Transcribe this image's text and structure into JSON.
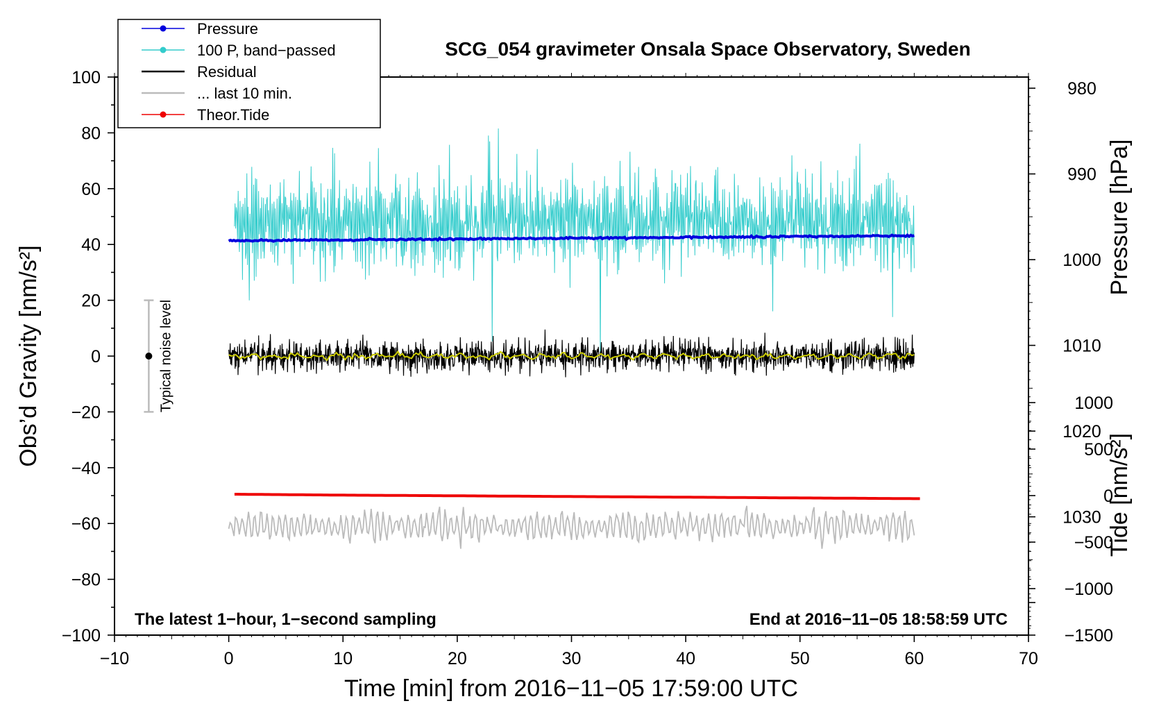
{
  "chart_data": {
    "type": "line",
    "title": "SCG_054 gravimeter Onsala Space Observatory, Sweden",
    "xlabel": "Time [min] from 2016−11−05 17:59:00 UTC",
    "ylabel_left": "Obs’d Gravity [nm/s²]",
    "ylabel_right_top": "Pressure [hPa]",
    "ylabel_right_bottom": "Tide [nm/s²]",
    "xlim": [
      -10,
      70
    ],
    "ylim": [
      -100,
      100
    ],
    "pressure_lim": [
      1043.8,
      978.7
    ],
    "tide_lim": [
      -1500,
      4500
    ],
    "x_ticks": [
      -10,
      0,
      10,
      20,
      30,
      40,
      50,
      60,
      70
    ],
    "x_tick_labels": [
      "−10",
      "0",
      "10",
      "20",
      "30",
      "40",
      "50",
      "60",
      "70"
    ],
    "y_ticks": [
      100,
      80,
      60,
      40,
      20,
      0,
      -20,
      -40,
      -60,
      -80,
      -100
    ],
    "y_tick_labels": [
      "100",
      "80",
      "60",
      "40",
      "20",
      "0",
      "−20",
      "−40",
      "−60",
      "−80",
      "−100"
    ],
    "pressure_ticks": [
      1030,
      1020,
      1010,
      1000,
      990,
      980
    ],
    "pressure_tick_labels": [
      "1030",
      "1020",
      "1010",
      "1000",
      "990",
      "980"
    ],
    "tide_ticks": [
      1000,
      500,
      0,
      -500,
      -1000,
      -1500
    ],
    "tide_tick_labels": [
      "1000",
      "500",
      "0",
      "−500",
      "−1000",
      "−1500"
    ],
    "legend_position": "top-left",
    "legend": [
      {
        "label": "Pressure",
        "color": "#0000dd",
        "marker": true
      },
      {
        "label": "100 P, band−passed",
        "color": "#33cccc",
        "marker": true
      },
      {
        "label": "Residual",
        "color": "#000000",
        "marker": false
      },
      {
        "label": "... last 10 min.",
        "color": "#bbbbbb",
        "marker": false
      },
      {
        "label": "Theor.Tide",
        "color": "#ee0000",
        "marker": true
      }
    ],
    "annotations": {
      "bottom_left": "The latest 1−hour, 1−second sampling",
      "bottom_right": "End at 2016−11−05 18:58:59 UTC",
      "noise_label": "Typical noise level"
    },
    "noise_bar": {
      "x": -7,
      "center": 0,
      "low": -20,
      "high": 20
    },
    "grid": false,
    "series": [
      {
        "name": "Pressure",
        "unit": "hPa",
        "color": "#0000dd",
        "x": [
          0,
          10,
          20,
          30,
          40,
          50,
          60
        ],
        "values": [
          997.8,
          997.7,
          997.6,
          997.5,
          997.4,
          997.3,
          997.2
        ]
      },
      {
        "name": "100 P, band−passed",
        "unit": "nm/s²",
        "color": "#33cccc",
        "center": 48,
        "amplitude": 12,
        "x_range": [
          0.5,
          60
        ]
      },
      {
        "name": "Residual",
        "unit": "nm/s²",
        "color": "#000000",
        "center": 0,
        "amplitude": 4,
        "x_range": [
          0,
          60
        ]
      },
      {
        "name": "Residual smoothed",
        "unit": "nm/s²",
        "color": "#cccc00",
        "center": 0,
        "amplitude": 1,
        "x_range": [
          0,
          60
        ]
      },
      {
        "name": "... last 10 min.",
        "unit": "nm/s²",
        "color": "#bbbbbb",
        "center": -61,
        "amplitude": 4,
        "x_range": [
          0,
          60
        ]
      },
      {
        "name": "Theor.Tide",
        "unit": "nm/s²",
        "color": "#ee0000",
        "x": [
          0.5,
          10,
          20,
          30,
          40,
          50,
          60.5
        ],
        "values": [
          15,
          5,
          -2,
          -10,
          -17,
          -25,
          -33
        ]
      }
    ]
  }
}
